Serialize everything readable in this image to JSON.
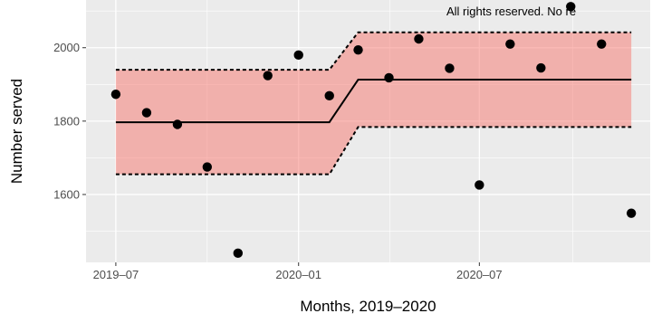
{
  "chart_data": {
    "type": "scatter",
    "title": "",
    "xlabel": "Months, 2019–2020",
    "ylabel": "Number served",
    "annotation": "All rights reserved. No re",
    "x_ticks": [
      {
        "date": "2019-07",
        "label": "2019–07"
      },
      {
        "date": "2020-01",
        "label": "2020–01"
      },
      {
        "date": "2020-07",
        "label": "2020–07"
      }
    ],
    "y_ticks": [
      1600,
      1800,
      2000
    ],
    "xlim": [
      "2019-06-01",
      "2020-12-20"
    ],
    "ylim": [
      1415,
      2130
    ],
    "grid": true,
    "legend": "none",
    "colors": {
      "panel": "#ebebeb",
      "grid": "#ffffff",
      "band_fill": "#f8766d",
      "point": "#000000",
      "line": "#000000"
    },
    "points": [
      {
        "x": "2019-07",
        "y": 1873
      },
      {
        "x": "2019-08",
        "y": 1823
      },
      {
        "x": "2019-09",
        "y": 1791
      },
      {
        "x": "2019-10",
        "y": 1675
      },
      {
        "x": "2019-11",
        "y": 1440
      },
      {
        "x": "2019-12",
        "y": 1924
      },
      {
        "x": "2020-01",
        "y": 1980
      },
      {
        "x": "2020-02",
        "y": 1869
      },
      {
        "x": "2020-03",
        "y": 1994
      },
      {
        "x": "2020-04",
        "y": 1918
      },
      {
        "x": "2020-05",
        "y": 2024
      },
      {
        "x": "2020-06",
        "y": 1944
      },
      {
        "x": "2020-07",
        "y": 1626
      },
      {
        "x": "2020-08",
        "y": 2010
      },
      {
        "x": "2020-09",
        "y": 1945
      },
      {
        "x": "2020-10",
        "y": 2112
      },
      {
        "x": "2020-11",
        "y": 2010
      },
      {
        "x": "2020-12",
        "y": 1549
      }
    ],
    "center_line": [
      {
        "x": "2019-07",
        "y": 1797
      },
      {
        "x": "2020-02",
        "y": 1797
      },
      {
        "x": "2020-03",
        "y": 1913
      },
      {
        "x": "2020-12",
        "y": 1913
      }
    ],
    "upper_limit": [
      {
        "x": "2019-07",
        "y": 1940
      },
      {
        "x": "2020-02",
        "y": 1940
      },
      {
        "x": "2020-03",
        "y": 2042
      },
      {
        "x": "2020-12",
        "y": 2042
      }
    ],
    "lower_limit": [
      {
        "x": "2019-07",
        "y": 1655
      },
      {
        "x": "2020-02",
        "y": 1655
      },
      {
        "x": "2020-03",
        "y": 1784
      },
      {
        "x": "2020-12",
        "y": 1784
      }
    ]
  }
}
